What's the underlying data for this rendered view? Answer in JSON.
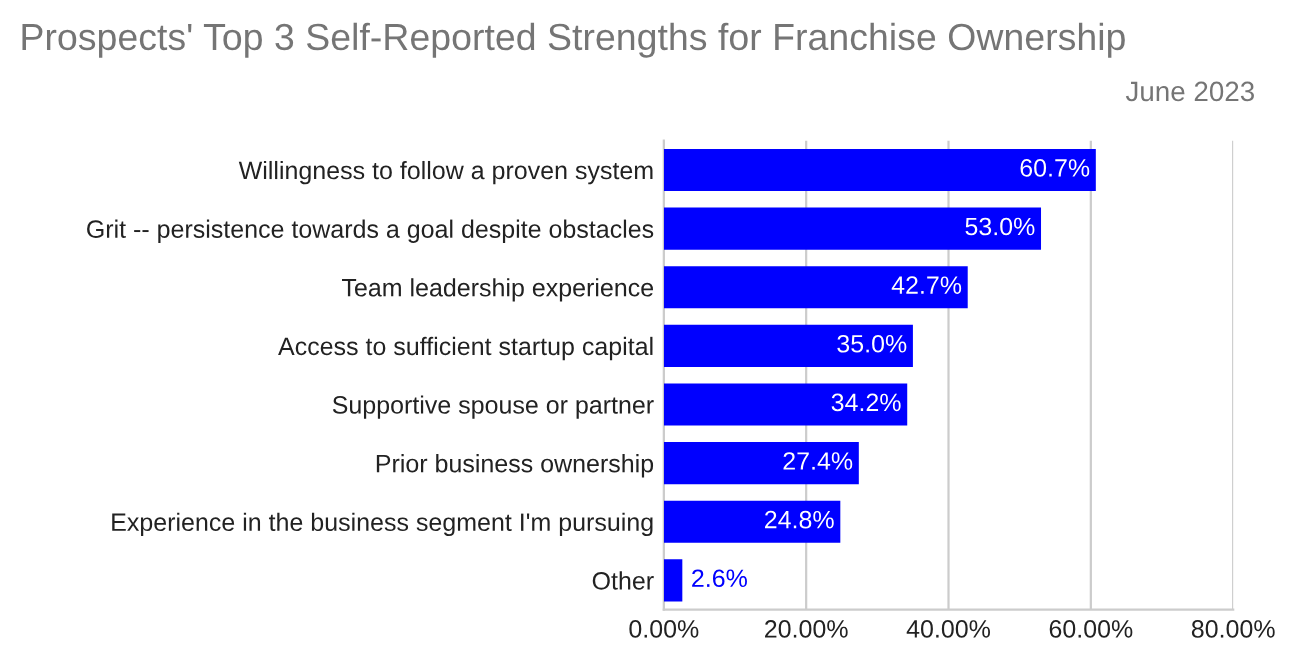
{
  "chart_data": {
    "type": "bar",
    "orientation": "horizontal",
    "title": "Prospects' Top 3 Self-Reported Strengths for Franchise Ownership",
    "subtitle": "June 2023",
    "categories": [
      "Willingness to follow a proven system",
      "Grit -- persistence towards a goal despite obstacles",
      "Team leadership experience",
      "Access to sufficient startup capital",
      "Supportive spouse or partner",
      "Prior business ownership",
      "Experience in the business segment I'm pursuing",
      "Other"
    ],
    "values": [
      60.7,
      53.0,
      42.7,
      35.0,
      34.2,
      27.4,
      24.8,
      2.6
    ],
    "value_labels": [
      "60.7%",
      "53.0%",
      "42.7%",
      "35.0%",
      "34.2%",
      "27.4%",
      "24.8%",
      "2.6%"
    ],
    "color": "#0000ff",
    "xlim": [
      0,
      80
    ],
    "xticks": [
      {
        "value": 0,
        "label": "0.00%"
      },
      {
        "value": 20,
        "label": "20.00%"
      },
      {
        "value": 40,
        "label": "40.00%"
      },
      {
        "value": 60,
        "label": "60.00%"
      },
      {
        "value": 80,
        "label": "80.00%"
      }
    ],
    "grid": "x",
    "legend": false
  }
}
